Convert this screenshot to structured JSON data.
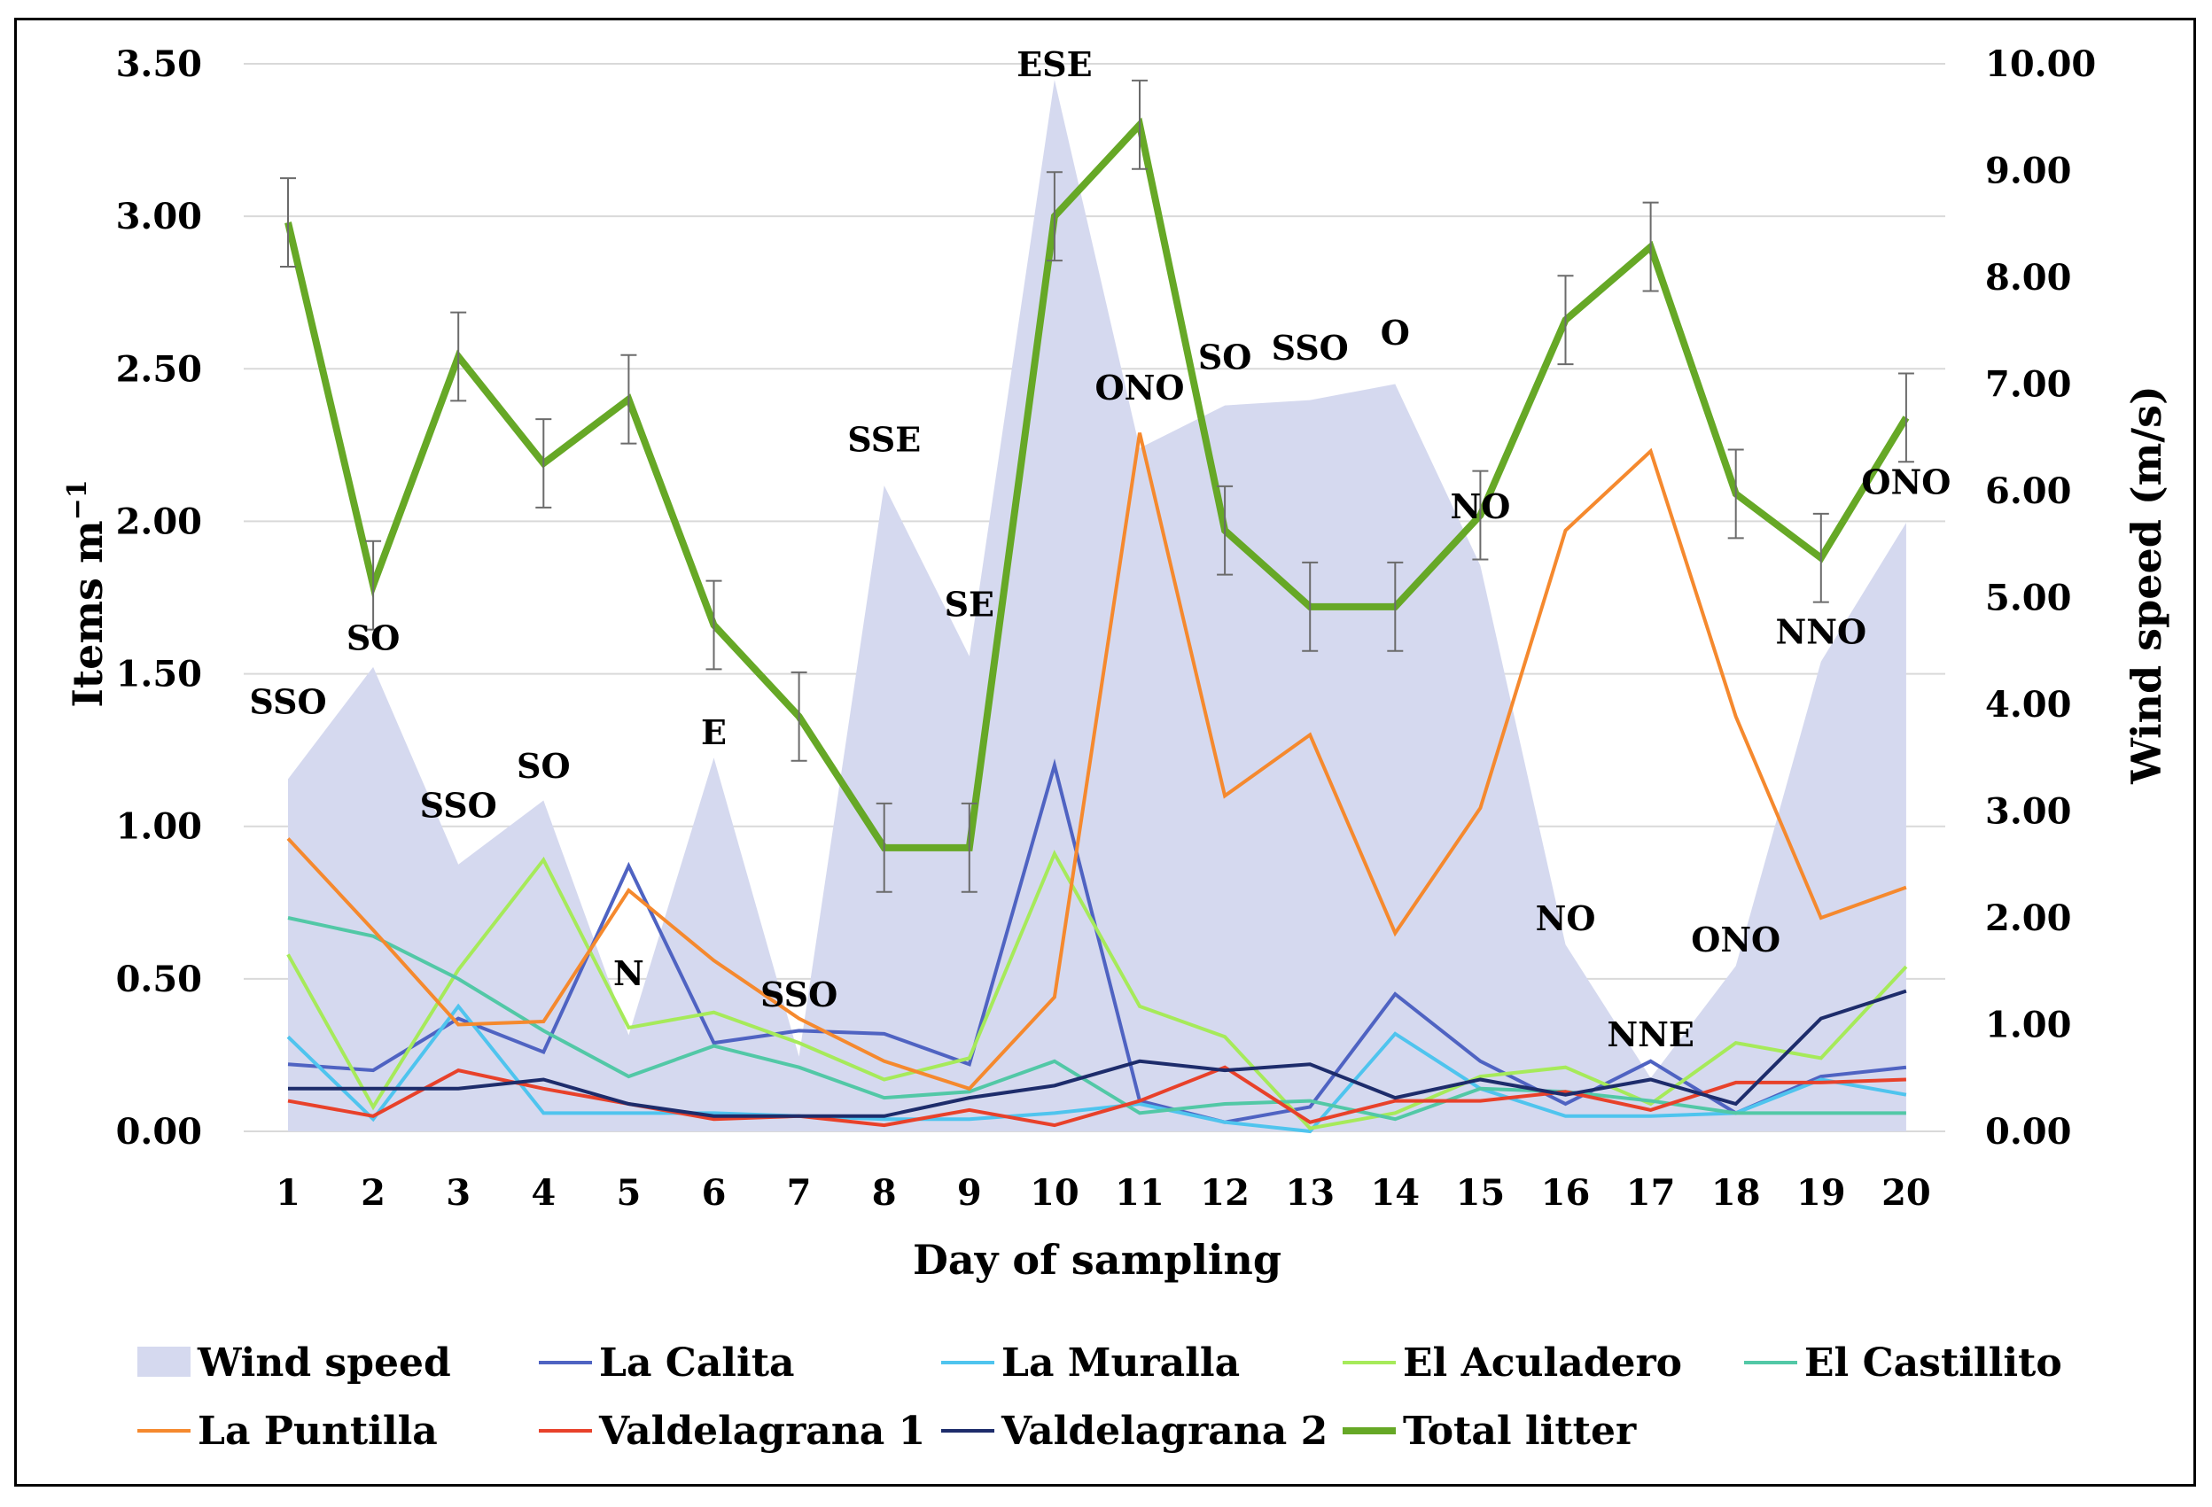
{
  "chart_data": {
    "type": "line",
    "title": "",
    "xlabel": "Day of sampling",
    "ylabel": "Items m⁻¹",
    "ylabel_parts": {
      "base": "Items m",
      "sup": "−1"
    },
    "y2label": "Wind speed (m/s)",
    "x": [
      1,
      2,
      3,
      4,
      5,
      6,
      7,
      8,
      9,
      10,
      11,
      12,
      13,
      14,
      15,
      16,
      17,
      18,
      19,
      20
    ],
    "x_tick_labels": [
      "1",
      "2",
      "3",
      "4",
      "5",
      "6",
      "7",
      "8",
      "9",
      "10",
      "11",
      "12",
      "13",
      "14",
      "15",
      "16",
      "17",
      "18",
      "19",
      "20"
    ],
    "ylim": [
      0,
      3.5
    ],
    "y_tick_labels": [
      "0.00",
      "0.50",
      "1.00",
      "1.50",
      "2.00",
      "2.50",
      "3.00",
      "3.50"
    ],
    "y2lim": [
      0,
      10
    ],
    "y2_tick_labels": [
      "0.00",
      "1.00",
      "2.00",
      "3.00",
      "4.00",
      "5.00",
      "6.00",
      "7.00",
      "8.00",
      "9.00",
      "10.00"
    ],
    "grid": "horizontal",
    "legend_position": "bottom",
    "wind_speed": {
      "name": "Wind speed",
      "axis": "secondary",
      "color": "#d5d9ef",
      "values": [
        3.3,
        4.35,
        2.5,
        3.1,
        0.9,
        3.5,
        0.7,
        6.05,
        4.45,
        9.85,
        6.4,
        6.8,
        6.85,
        7.0,
        5.3,
        1.75,
        0.5,
        1.55,
        4.4,
        5.7
      ]
    },
    "series": [
      {
        "name": "La Calita",
        "color": "#4f63c2",
        "width": 4,
        "values": [
          0.22,
          0.2,
          0.37,
          0.26,
          0.87,
          0.29,
          0.33,
          0.32,
          0.22,
          1.2,
          0.1,
          0.03,
          0.08,
          0.45,
          0.23,
          0.09,
          0.23,
          0.06,
          0.18,
          0.21
        ]
      },
      {
        "name": "La Muralla",
        "color": "#4fc4ee",
        "width": 4,
        "values": [
          0.31,
          0.04,
          0.41,
          0.06,
          0.06,
          0.06,
          0.05,
          0.04,
          0.04,
          0.06,
          0.09,
          0.03,
          0.0,
          0.32,
          0.14,
          0.05,
          0.05,
          0.06,
          0.17,
          0.12
        ]
      },
      {
        "name": "El Aculadero",
        "color": "#a6ea5a",
        "width": 4,
        "values": [
          0.58,
          0.08,
          0.53,
          0.89,
          0.34,
          0.39,
          0.29,
          0.17,
          0.24,
          0.91,
          0.41,
          0.31,
          0.01,
          0.06,
          0.18,
          0.21,
          0.09,
          0.29,
          0.24,
          0.54
        ]
      },
      {
        "name": "El Castillito",
        "color": "#52c8a6",
        "width": 4,
        "values": [
          0.7,
          0.64,
          0.5,
          0.33,
          0.18,
          0.28,
          0.21,
          0.11,
          0.13,
          0.23,
          0.06,
          0.09,
          0.1,
          0.04,
          0.14,
          0.13,
          0.1,
          0.06,
          0.06,
          0.06
        ]
      },
      {
        "name": "La Puntilla",
        "color": "#f5892e",
        "width": 4,
        "values": [
          0.96,
          0.66,
          0.35,
          0.36,
          0.79,
          0.56,
          0.37,
          0.23,
          0.14,
          0.44,
          2.29,
          1.1,
          1.3,
          0.65,
          1.06,
          1.97,
          2.23,
          1.36,
          0.7,
          0.8
        ]
      },
      {
        "name": "Valdelagrana 1",
        "color": "#e8412a",
        "width": 4,
        "values": [
          0.1,
          0.05,
          0.2,
          0.14,
          0.09,
          0.04,
          0.05,
          0.02,
          0.07,
          0.02,
          0.1,
          0.21,
          0.03,
          0.1,
          0.1,
          0.13,
          0.07,
          0.16,
          0.16,
          0.17
        ]
      },
      {
        "name": "Valdelagrana 2",
        "color": "#1d2c6b",
        "width": 4,
        "values": [
          0.14,
          0.14,
          0.14,
          0.17,
          0.09,
          0.05,
          0.05,
          0.05,
          0.11,
          0.15,
          0.23,
          0.2,
          0.22,
          0.11,
          0.17,
          0.12,
          0.17,
          0.09,
          0.37,
          0.46
        ]
      },
      {
        "name": "Total litter",
        "color": "#66a826",
        "width": 8,
        "values": [
          2.98,
          1.79,
          2.54,
          2.19,
          2.4,
          1.66,
          1.36,
          0.93,
          0.93,
          3.0,
          3.3,
          1.97,
          1.72,
          1.72,
          2.02,
          2.66,
          2.9,
          2.09,
          1.88,
          2.34
        ],
        "error": [
          0.145,
          0.145,
          0.145,
          0.145,
          0.145,
          0.145,
          0.145,
          0.145,
          0.145,
          0.145,
          0.145,
          0.145,
          0.145,
          0.145,
          0.145,
          0.145,
          0.145,
          0.145,
          0.145,
          0.145
        ]
      }
    ],
    "annotations": [
      {
        "text": "SSO",
        "day": 1,
        "y": 1.41
      },
      {
        "text": "SO",
        "day": 2,
        "y": 1.62
      },
      {
        "text": "SSO",
        "day": 3,
        "y": 1.07
      },
      {
        "text": "SO",
        "day": 4,
        "y": 1.2
      },
      {
        "text": "N",
        "day": 5,
        "y": 0.52
      },
      {
        "text": "E",
        "day": 6,
        "y": 1.31
      },
      {
        "text": "SSO",
        "day": 7,
        "y": 0.45
      },
      {
        "text": "SSE",
        "day": 8,
        "y": 2.27
      },
      {
        "text": "SE",
        "day": 9,
        "y": 1.73
      },
      {
        "text": "ESE",
        "day": 10,
        "y": 3.5
      },
      {
        "text": "ONO",
        "day": 11,
        "y": 2.44
      },
      {
        "text": "SO",
        "day": 12,
        "y": 2.54
      },
      {
        "text": "SSO",
        "day": 13,
        "y": 2.57
      },
      {
        "text": "O",
        "day": 14,
        "y": 2.62
      },
      {
        "text": "NO",
        "day": 15,
        "y": 2.05
      },
      {
        "text": "NO",
        "day": 16,
        "y": 0.7
      },
      {
        "text": "NNE",
        "day": 17,
        "y": 0.32
      },
      {
        "text": "ONO",
        "day": 18,
        "y": 0.63
      },
      {
        "text": "NNO",
        "day": 19,
        "y": 1.64
      },
      {
        "text": "ONO",
        "day": 20,
        "y": 2.13
      }
    ],
    "legend": {
      "row1": [
        "Wind speed",
        "La Calita",
        "La Muralla",
        "El Aculadero",
        "El Castillito"
      ],
      "row2": [
        "La Puntilla",
        "Valdelagrana 1",
        "Valdelagrana 2",
        "Total litter"
      ]
    }
  }
}
